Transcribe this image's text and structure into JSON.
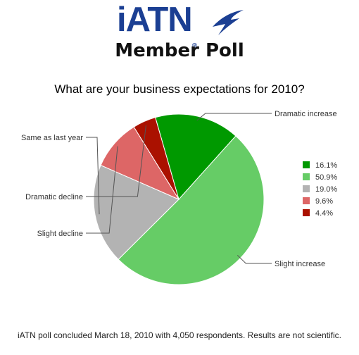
{
  "logo": {
    "brand": "iATN",
    "registered": "®",
    "subtitle": "Member Poll",
    "brand_color": "#1b3f93"
  },
  "footer_text": "iATN poll concluded March 18, 2010 with 4,050 respondents. Results are not scientific.",
  "chart_data": {
    "type": "pie",
    "title": "What are your business expectations for 2010?",
    "legend_position": "right",
    "slices": [
      {
        "label": "Dramatic increase",
        "value": 16.1,
        "display": "16.1%",
        "color": "#009900"
      },
      {
        "label": "Slight increase",
        "value": 50.9,
        "display": "50.9%",
        "color": "#66cc66"
      },
      {
        "label": "Same as last year",
        "value": 19.0,
        "display": "19.0%",
        "color": "#b3b3b3"
      },
      {
        "label": "Slight decline",
        "value": 9.6,
        "display": "9.6%",
        "color": "#dd6666"
      },
      {
        "label": "Dramatic decline",
        "value": 4.4,
        "display": "4.4%",
        "color": "#aa1100"
      }
    ]
  }
}
